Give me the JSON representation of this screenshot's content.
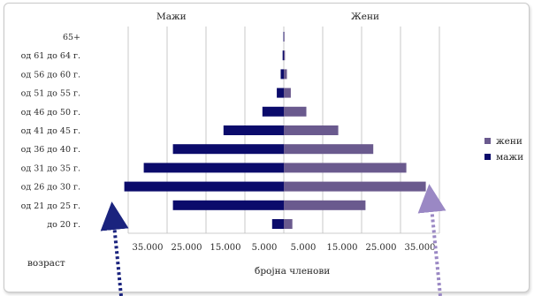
{
  "chart_data": {
    "type": "bar",
    "orientation": "horizontal",
    "title_left": "Мажи",
    "title_right": "Жени",
    "categories": [
      "до 20 г.",
      "од 21 до 25 г.",
      "од 26 до 30 г.",
      "од 31 до 35 г.",
      "од 36 до 40 г.",
      "од 41 до 45 г.",
      "од 46 до 50 г.",
      "од 51 до 55 г.",
      "од 56 до 60 г.",
      "од 61 до 64 г.",
      "65+"
    ],
    "series": [
      {
        "name": "мажи",
        "color": "#0b0b6b",
        "values": [
          3000,
          28500,
          41000,
          36000,
          28500,
          15500,
          5500,
          1800,
          800,
          300,
          100
        ]
      },
      {
        "name": "жени",
        "color": "#6a5a8e",
        "values": [
          2200,
          21000,
          36500,
          31500,
          23000,
          14000,
          5800,
          1800,
          800,
          300,
          100
        ]
      }
    ],
    "x_ticks": [
      "35.000",
      "25.000",
      "15.000",
      "5.000",
      "5.000",
      "15.000",
      "25.000",
      "35.000"
    ],
    "xlim": [
      -40000,
      40000
    ],
    "xlabel": "бројна членови",
    "ylabel": "возраст",
    "grid": true,
    "legend": [
      "жени",
      "мажи"
    ],
    "legend_position": "right"
  }
}
